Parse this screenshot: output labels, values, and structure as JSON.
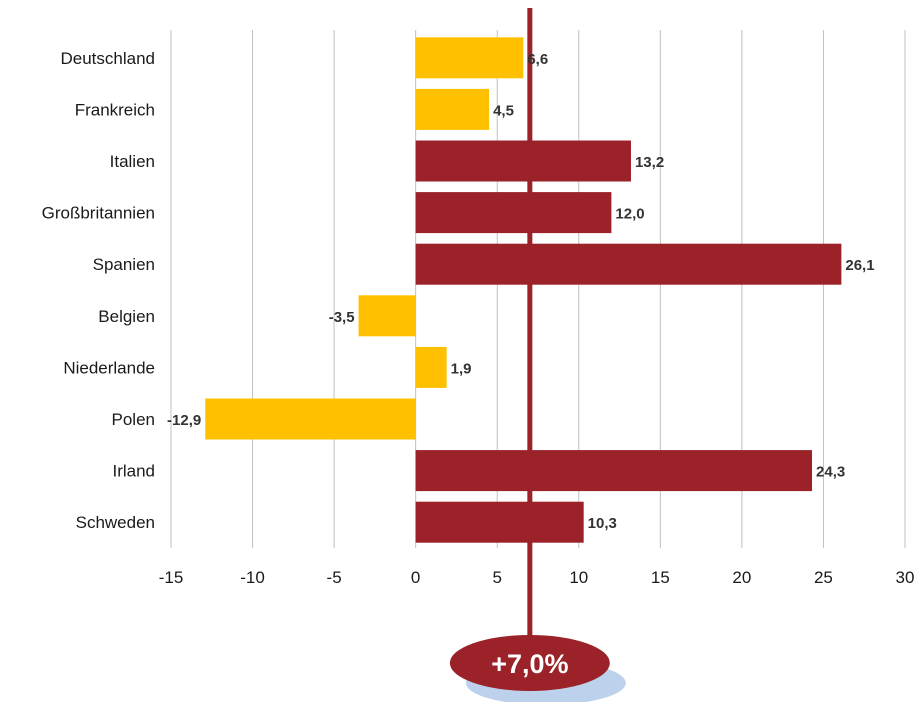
{
  "chart_data": {
    "type": "bar",
    "orientation": "horizontal",
    "categories": [
      "Deutschland",
      "Frankreich",
      "Italien",
      "Großbritannien",
      "Spanien",
      "Belgien",
      "Niederlande",
      "Polen",
      "Irland",
      "Schweden"
    ],
    "values": [
      6.6,
      4.5,
      13.2,
      12.0,
      26.1,
      -3.5,
      1.9,
      -12.9,
      24.3,
      10.3
    ],
    "value_labels": [
      "6,6",
      "4,5",
      "13,2",
      "12,0",
      "26,1",
      "-3,5",
      "1,9",
      "-12,9",
      "24,3",
      "10,3"
    ],
    "xlim": [
      -15,
      30
    ],
    "xticks": [
      -15,
      -10,
      -5,
      0,
      5,
      10,
      15,
      20,
      25,
      30
    ],
    "xtick_labels": [
      "-15",
      "-10",
      "-5",
      "0",
      "5",
      "10",
      "15",
      "20",
      "25",
      "30"
    ],
    "grid": "vertical",
    "reference_line": {
      "value": 7.0,
      "label": "+7,0%"
    },
    "colors": {
      "below_reference": "#ffc000",
      "above_reference": "#9b2229",
      "reference": "#9b2229",
      "grid": "#c0c0c0",
      "shadow": "#bcd2ec"
    }
  }
}
